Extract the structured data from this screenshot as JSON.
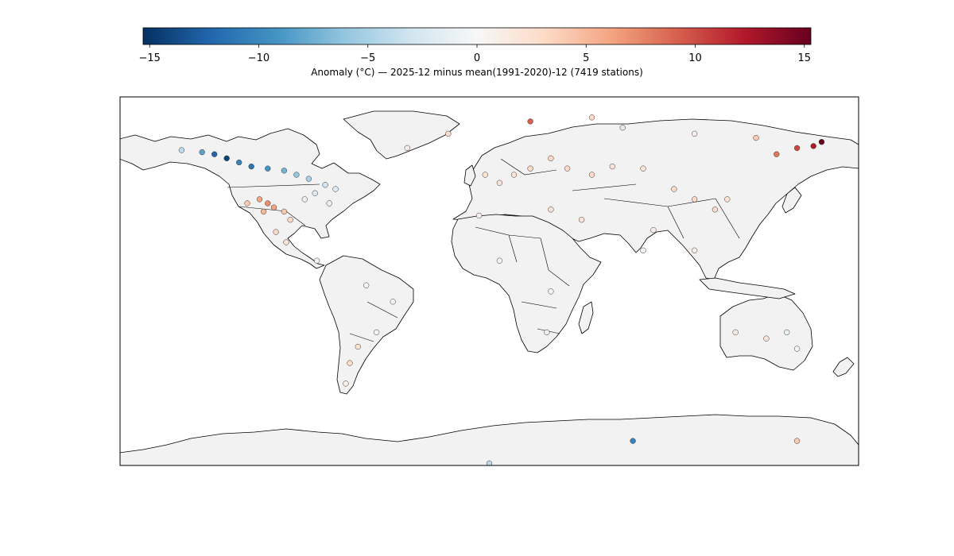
{
  "colorbar": {
    "ticks": [
      "−15",
      "−10",
      "−5",
      "0",
      "5",
      "10",
      "15"
    ],
    "tick_values": [
      -15,
      -10,
      -5,
      0,
      5,
      10,
      15
    ],
    "range": [
      -15.3,
      15.3
    ],
    "colormap": "RdBu_r",
    "label": "Anomaly (°C) — 2025-12 minus mean(1991-2020)-12 (7419 stations)"
  },
  "map": {
    "projection": "PlateCarree",
    "extent": {
      "lon": [
        -180,
        180
      ],
      "lat": [
        -90,
        90
      ]
    },
    "land_color": "#f2f2f2",
    "ocean_color": "#ffffff"
  },
  "chart_data": {
    "type": "scatter",
    "value_key": "anomaly_c",
    "station_count": 7419,
    "stations_sample": [
      {
        "lon": -150,
        "lat": 64,
        "anomaly": -4
      },
      {
        "lon": -140,
        "lat": 63,
        "anomaly": -8
      },
      {
        "lon": -134,
        "lat": 62,
        "anomaly": -12
      },
      {
        "lon": -128,
        "lat": 60,
        "anomaly": -14
      },
      {
        "lon": -122,
        "lat": 58,
        "anomaly": -10
      },
      {
        "lon": -116,
        "lat": 56,
        "anomaly": -11
      },
      {
        "lon": -108,
        "lat": 55,
        "anomaly": -9
      },
      {
        "lon": -100,
        "lat": 54,
        "anomaly": -7
      },
      {
        "lon": -94,
        "lat": 52,
        "anomaly": -6
      },
      {
        "lon": -88,
        "lat": 50,
        "anomaly": -5
      },
      {
        "lon": -80,
        "lat": 47,
        "anomaly": -3
      },
      {
        "lon": -75,
        "lat": 45,
        "anomaly": -2
      },
      {
        "lon": -85,
        "lat": 43,
        "anomaly": -2
      },
      {
        "lon": -90,
        "lat": 40,
        "anomaly": -1
      },
      {
        "lon": -78,
        "lat": 38,
        "anomaly": -1
      },
      {
        "lon": -112,
        "lat": 40,
        "anomaly": 6
      },
      {
        "lon": -108,
        "lat": 38,
        "anomaly": 7
      },
      {
        "lon": -105,
        "lat": 36,
        "anomaly": 6
      },
      {
        "lon": -110,
        "lat": 34,
        "anomaly": 5
      },
      {
        "lon": -118,
        "lat": 38,
        "anomaly": 4
      },
      {
        "lon": -100,
        "lat": 34,
        "anomaly": 4
      },
      {
        "lon": -97,
        "lat": 30,
        "anomaly": 3
      },
      {
        "lon": -104,
        "lat": 24,
        "anomaly": 3
      },
      {
        "lon": -99,
        "lat": 19,
        "anomaly": 2
      },
      {
        "lon": -84,
        "lat": 10,
        "anomaly": 1
      },
      {
        "lon": -60,
        "lat": -2,
        "anomaly": 0.5
      },
      {
        "lon": -47,
        "lat": -10,
        "anomaly": 0.5
      },
      {
        "lon": -55,
        "lat": -25,
        "anomaly": -0.5
      },
      {
        "lon": -64,
        "lat": -32,
        "anomaly": 2
      },
      {
        "lon": -68,
        "lat": -40,
        "anomaly": 3
      },
      {
        "lon": -70,
        "lat": -50,
        "anomaly": 1
      },
      {
        "lon": -2,
        "lat": 52,
        "anomaly": 2
      },
      {
        "lon": 5,
        "lat": 48,
        "anomaly": 2
      },
      {
        "lon": 12,
        "lat": 52,
        "anomaly": 2
      },
      {
        "lon": 20,
        "lat": 55,
        "anomaly": 3
      },
      {
        "lon": 30,
        "lat": 60,
        "anomaly": 3
      },
      {
        "lon": 38,
        "lat": 55,
        "anomaly": 3
      },
      {
        "lon": 50,
        "lat": 52,
        "anomaly": 3
      },
      {
        "lon": 60,
        "lat": 56,
        "anomaly": 2
      },
      {
        "lon": 75,
        "lat": 55,
        "anomaly": 2
      },
      {
        "lon": 90,
        "lat": 45,
        "anomaly": 3
      },
      {
        "lon": 100,
        "lat": 40,
        "anomaly": 3
      },
      {
        "lon": 110,
        "lat": 35,
        "anomaly": 3
      },
      {
        "lon": 116,
        "lat": 40,
        "anomaly": 2
      },
      {
        "lon": 80,
        "lat": 25,
        "anomaly": 1
      },
      {
        "lon": 75,
        "lat": 15,
        "anomaly": -0.5
      },
      {
        "lon": 100,
        "lat": 15,
        "anomaly": 1
      },
      {
        "lon": 30,
        "lat": 35,
        "anomaly": 2
      },
      {
        "lon": 45,
        "lat": 30,
        "anomaly": 2
      },
      {
        "lon": -5,
        "lat": 32,
        "anomaly": 1
      },
      {
        "lon": 5,
        "lat": 10,
        "anomaly": 0.5
      },
      {
        "lon": 30,
        "lat": -5,
        "anomaly": -0.5
      },
      {
        "lon": 28,
        "lat": -25,
        "anomaly": -1
      },
      {
        "lon": 120,
        "lat": -25,
        "anomaly": 1
      },
      {
        "lon": 135,
        "lat": -28,
        "anomaly": 2
      },
      {
        "lon": 145,
        "lat": -25,
        "anomaly": -1
      },
      {
        "lon": 150,
        "lat": -33,
        "anomaly": 0.5
      },
      {
        "lon": 140,
        "lat": 62,
        "anomaly": 8
      },
      {
        "lon": 150,
        "lat": 65,
        "anomaly": 10
      },
      {
        "lon": 158,
        "lat": 66,
        "anomaly": 12
      },
      {
        "lon": 162,
        "lat": 68,
        "anomaly": 15
      },
      {
        "lon": 130,
        "lat": 70,
        "anomaly": 4
      },
      {
        "lon": 100,
        "lat": 72,
        "anomaly": 1
      },
      {
        "lon": 65,
        "lat": 75,
        "anomaly": -2
      },
      {
        "lon": 20,
        "lat": 78,
        "anomaly": 9
      },
      {
        "lon": 50,
        "lat": 80,
        "anomaly": 3
      },
      {
        "lon": -40,
        "lat": 65,
        "anomaly": 1
      },
      {
        "lon": -20,
        "lat": 72,
        "anomaly": 3
      },
      {
        "lon": 70,
        "lat": -78,
        "anomaly": -10
      },
      {
        "lon": 150,
        "lat": -78,
        "anomaly": 4
      },
      {
        "lon": 0,
        "lat": -89,
        "anomaly": -4
      }
    ]
  }
}
